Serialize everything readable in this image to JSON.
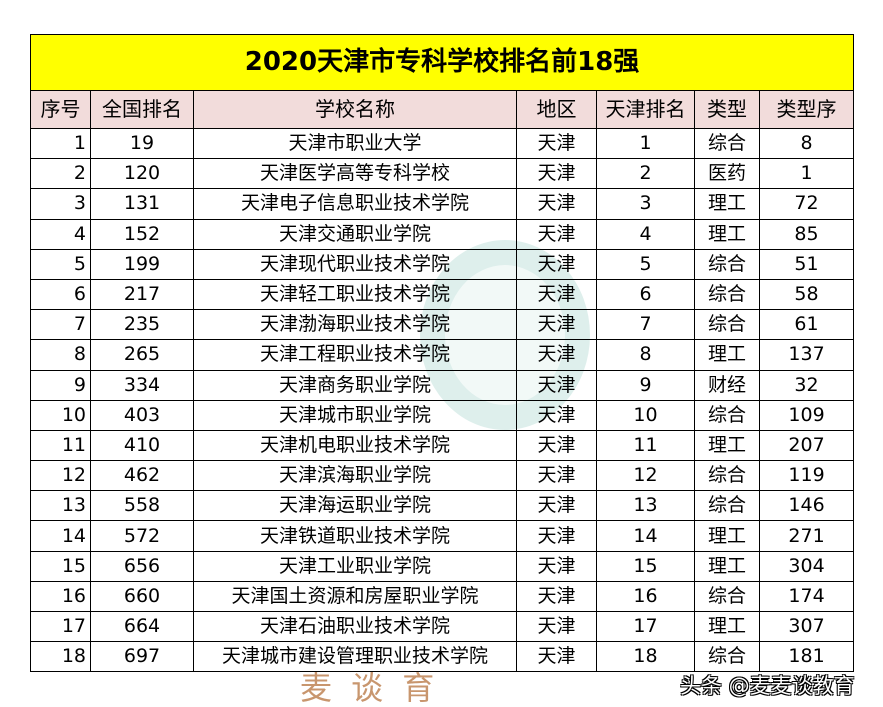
{
  "title": "2020天津市专科学校排名前18强",
  "headers": [
    "序号",
    "全国排名",
    "学校名称",
    "地区",
    "天津排名",
    "类型",
    "类型序"
  ],
  "rows": [
    [
      "1",
      "19",
      "天津市职业大学",
      "天津",
      "1",
      "综合",
      "8"
    ],
    [
      "2",
      "120",
      "天津医学高等专科学校",
      "天津",
      "2",
      "医药",
      "1"
    ],
    [
      "3",
      "131",
      "天津电子信息职业技术学院",
      "天津",
      "3",
      "理工",
      "72"
    ],
    [
      "4",
      "152",
      "天津交通职业学院",
      "天津",
      "4",
      "理工",
      "85"
    ],
    [
      "5",
      "199",
      "天津现代职业技术学院",
      "天津",
      "5",
      "综合",
      "51"
    ],
    [
      "6",
      "217",
      "天津轻工职业技术学院",
      "天津",
      "6",
      "综合",
      "58"
    ],
    [
      "7",
      "235",
      "天津渤海职业技术学院",
      "天津",
      "7",
      "综合",
      "61"
    ],
    [
      "8",
      "265",
      "天津工程职业技术学院",
      "天津",
      "8",
      "理工",
      "137"
    ],
    [
      "9",
      "334",
      "天津商务职业学院",
      "天津",
      "9",
      "财经",
      "32"
    ],
    [
      "10",
      "403",
      "天津城市职业学院",
      "天津",
      "10",
      "综合",
      "109"
    ],
    [
      "11",
      "410",
      "天津机电职业技术学院",
      "天津",
      "11",
      "理工",
      "207"
    ],
    [
      "12",
      "462",
      "天津滨海职业学院",
      "天津",
      "12",
      "综合",
      "119"
    ],
    [
      "13",
      "558",
      "天津海运职业学院",
      "天津",
      "13",
      "综合",
      "146"
    ],
    [
      "14",
      "572",
      "天津铁道职业技术学院",
      "天津",
      "14",
      "理工",
      "271"
    ],
    [
      "15",
      "656",
      "天津工业职业学院",
      "天津",
      "15",
      "理工",
      "304"
    ],
    [
      "16",
      "660",
      "天津国土资源和房屋职业学院",
      "天津",
      "16",
      "综合",
      "174"
    ],
    [
      "17",
      "664",
      "天津石油职业技术学院",
      "天津",
      "17",
      "理工",
      "307"
    ],
    [
      "18",
      "697",
      "天津城市建设管理职业技术学院",
      "天津",
      "18",
      "综合",
      "181"
    ]
  ],
  "watermark_logo": [
    "麦",
    "谈",
    "育"
  ],
  "credit": "头条 @麦麦谈教育",
  "colors": {
    "title_bg": "#ffff00",
    "header_bg": "#f2dcdb"
  }
}
